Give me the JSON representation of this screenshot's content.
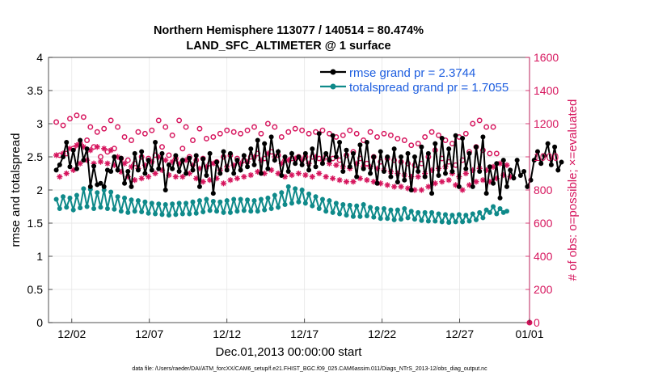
{
  "chart_data": {
    "type": "line",
    "title_line1": "Northern Hemisphere 113077 / 140514 = 80.474%",
    "title_line2": "LAND_SFC_ALTIMETER @ 1 surface",
    "xlabel": "Dec.01,2013 00:00:00 start",
    "ylabel": "rmse and totalspread",
    "ylabel_right": "# of obs: o=possible; ×=evaluated",
    "footnote": "data file: /Users/raeder/DAI/ATM_forcXX/CAM6_setup/f.e21.FHIST_BGC.f09_025.CAM6assim.011/Diags_NTrS_2013-12/obs_diag_output.nc",
    "xlim": [
      0.5,
      31.5
    ],
    "x_ticks": [
      {
        "value": 2,
        "label": "12/02"
      },
      {
        "value": 7,
        "label": "12/07"
      },
      {
        "value": 12,
        "label": "12/12"
      },
      {
        "value": 17,
        "label": "12/17"
      },
      {
        "value": 22,
        "label": "12/22"
      },
      {
        "value": 27,
        "label": "12/27"
      },
      {
        "value": 32,
        "label": "01/01"
      }
    ],
    "ylim_left": [
      0,
      4
    ],
    "y_ticks_left": [
      "0",
      "0.5",
      "1",
      "1.5",
      "2",
      "2.5",
      "3",
      "3.5",
      "4"
    ],
    "ylim_right": [
      0,
      1600
    ],
    "y_ticks_right": [
      "0",
      "200",
      "400",
      "600",
      "800",
      "1000",
      "1200",
      "1400",
      "1600"
    ],
    "grid": true,
    "legend_position": "top-right",
    "colors": {
      "rmse": "#000000",
      "spread": "#0f8a8a",
      "obs": "#d6155d",
      "legend_text": "#1f5fe0"
    },
    "series": [
      {
        "name": "rmse grand pr = 2.3744",
        "axis": "left",
        "style": "line-marker",
        "values": [
          2.3,
          2.38,
          2.5,
          2.72,
          2.35,
          2.6,
          2.32,
          2.75,
          2.45,
          2.62,
          2.05,
          2.36,
          2.08,
          2.1,
          2.05,
          2.3,
          2.28,
          2.5,
          2.3,
          2.48,
          2.1,
          2.28,
          2.05,
          2.55,
          2.3,
          2.58,
          2.25,
          2.45,
          2.3,
          2.72,
          2.32,
          2.55,
          2.0,
          2.38,
          2.32,
          2.52,
          2.28,
          2.45,
          2.25,
          2.48,
          2.3,
          2.52,
          2.05,
          2.47,
          2.22,
          2.55,
          1.95,
          2.42,
          2.25,
          2.58,
          2.3,
          2.55,
          2.25,
          2.45,
          2.3,
          2.52,
          2.35,
          2.62,
          2.38,
          2.75,
          2.25,
          2.7,
          2.32,
          2.8,
          2.45,
          2.58,
          2.22,
          2.5,
          2.28,
          2.55,
          2.4,
          2.5,
          2.38,
          2.55,
          2.3,
          2.62,
          2.35,
          2.85,
          2.4,
          2.55,
          2.45,
          2.82,
          2.5,
          2.72,
          2.28,
          2.6,
          2.35,
          2.55,
          2.2,
          2.68,
          2.32,
          2.72,
          2.25,
          2.5,
          2.1,
          2.58,
          2.28,
          2.5,
          2.2,
          2.62,
          2.12,
          2.5,
          2.15,
          2.55,
          2.0,
          2.5,
          2.28,
          2.65,
          2.2,
          2.55,
          1.95,
          2.7,
          2.22,
          2.78,
          2.25,
          2.62,
          2.28,
          2.82,
          2.05,
          2.78,
          2.32,
          2.55,
          2.05,
          2.65,
          2.28,
          2.8,
          1.95,
          2.35,
          2.1,
          2.4,
          1.88,
          2.45,
          2.05,
          2.3,
          2.18,
          2.45,
          2.22,
          2.28,
          2.05,
          2.15,
          2.45,
          2.58,
          2.4,
          2.52,
          2.7,
          2.38,
          2.65,
          2.3,
          2.42
        ]
      },
      {
        "name": "totalspread grand pr = 1.7055",
        "axis": "left",
        "style": "line-marker",
        "values": [
          1.86,
          1.72,
          1.9,
          1.74,
          1.88,
          1.7,
          1.92,
          1.73,
          2.02,
          1.75,
          2.01,
          1.72,
          1.96,
          1.74,
          2.0,
          1.72,
          1.97,
          1.71,
          1.9,
          1.68,
          1.88,
          1.66,
          1.85,
          1.68,
          1.84,
          1.67,
          1.82,
          1.65,
          1.8,
          1.64,
          1.79,
          1.63,
          1.78,
          1.62,
          1.79,
          1.63,
          1.8,
          1.64,
          1.8,
          1.64,
          1.82,
          1.65,
          1.84,
          1.67,
          1.86,
          1.69,
          1.83,
          1.68,
          1.82,
          1.66,
          1.84,
          1.66,
          1.86,
          1.68,
          1.86,
          1.69,
          1.85,
          1.68,
          1.84,
          1.68,
          1.86,
          1.7,
          1.88,
          1.72,
          1.92,
          1.74,
          1.96,
          1.78,
          2.05,
          1.8,
          2.02,
          1.82,
          2.0,
          1.8,
          1.94,
          1.76,
          1.9,
          1.72,
          1.86,
          1.68,
          1.84,
          1.66,
          1.8,
          1.64,
          1.78,
          1.62,
          1.77,
          1.6,
          1.76,
          1.6,
          1.78,
          1.61,
          1.74,
          1.59,
          1.72,
          1.57,
          1.72,
          1.57,
          1.7,
          1.55,
          1.7,
          1.56,
          1.72,
          1.58,
          1.68,
          1.56,
          1.66,
          1.54,
          1.66,
          1.53,
          1.66,
          1.53,
          1.64,
          1.52,
          1.63,
          1.51,
          1.62,
          1.52,
          1.63,
          1.52,
          1.62,
          1.53,
          1.64,
          1.55,
          1.66,
          1.58,
          1.7,
          1.66,
          1.75,
          1.64,
          1.72,
          1.66,
          1.68
        ]
      },
      {
        "name": "possible",
        "axis": "right",
        "style": "circle",
        "values": [
          1210,
          1010,
          1190,
          1020,
          1230,
          1050,
          1250,
          1080,
          1240,
          1100,
          1180,
          1060,
          1150,
          1000,
          1170,
          1030,
          1220,
          1050,
          1180,
          990,
          1120,
          980,
          1100,
          960,
          1150,
          1000,
          1140,
          990,
          1160,
          1010,
          1220,
          1060,
          1180,
          1010,
          1130,
          990,
          1220,
          1050,
          1180,
          1000,
          1100,
          980,
          1170,
          990,
          1110,
          960,
          1120,
          970,
          1140,
          1000,
          1160,
          1010,
          1150,
          990,
          1140,
          980,
          1160,
          1000,
          1180,
          1020,
          1140,
          990,
          1200,
          1030,
          1180,
          1010,
          1120,
          980,
          1150,
          990,
          1170,
          1000,
          1160,
          1000,
          1140,
          1000,
          1150,
          990,
          1160,
          1000,
          1140,
          990,
          1120,
          980,
          1130,
          1010,
          1160,
          1030,
          1140,
          990,
          1100,
          960,
          1150,
          1000,
          1120,
          970,
          1140,
          990,
          1130,
          980,
          1110,
          970,
          1100,
          960,
          1070,
          950,
          1080,
          960,
          1120,
          1000,
          1150,
          1040,
          1130,
          990,
          1100,
          970,
          1080,
          950,
          1120,
          980,
          1140,
          1030,
          1200,
          1060,
          1220,
          1040,
          1180,
          1020,
          1180,
          1020
        ]
      },
      {
        "name": "evaluated",
        "axis": "right",
        "style": "asterisk",
        "values": [
          1010,
          880,
          1020,
          900,
          1050,
          920,
          1070,
          960,
          1060,
          980,
          1040,
          960,
          1060,
          970,
          1050,
          960,
          1040,
          950,
          1000,
          910,
          960,
          880,
          940,
          860,
          930,
          870,
          950,
          880,
          970,
          900,
          1000,
          920,
          980,
          890,
          970,
          880,
          960,
          880,
          980,
          900,
          950,
          870,
          930,
          850,
          940,
          860,
          960,
          870,
          920,
          840,
          940,
          860,
          950,
          870,
          960,
          880,
          970,
          890,
          1000,
          910,
          980,
          900,
          1020,
          920,
          1000,
          900,
          960,
          880,
          980,
          890,
          990,
          900,
          980,
          890,
          960,
          880,
          1000,
          900,
          980,
          880,
          960,
          870,
          950,
          860,
          940,
          850,
          930,
          850,
          960,
          870,
          940,
          860,
          940,
          850,
          930,
          840,
          920,
          830,
          910,
          820,
          900,
          820,
          890,
          810,
          880,
          800,
          880,
          800,
          900,
          820,
          920,
          840,
          930,
          850,
          940,
          860,
          900,
          830,
          880,
          800,
          900,
          830,
          920,
          850,
          930,
          860,
          920,
          850,
          940,
          870,
          960,
          890,
          950,
          880
        ]
      }
    ]
  }
}
